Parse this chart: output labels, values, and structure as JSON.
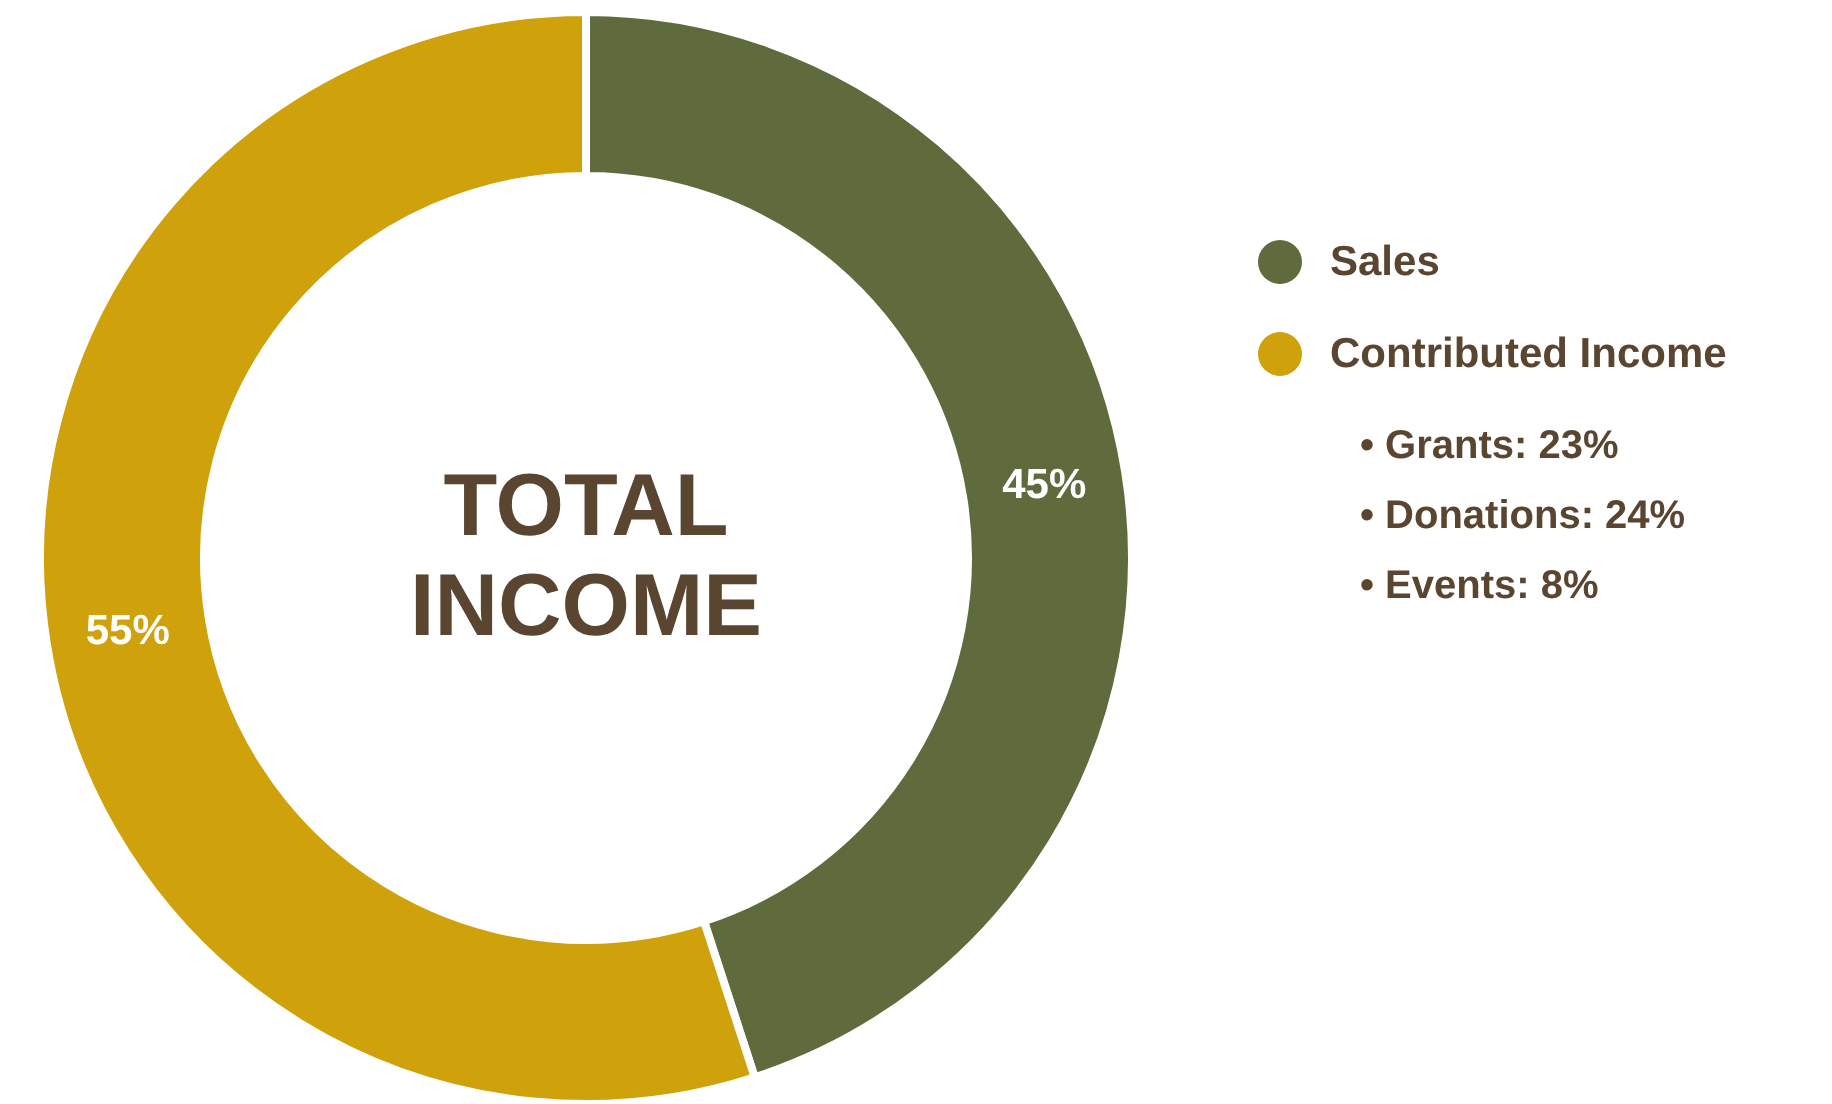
{
  "chart_data": {
    "type": "donut",
    "title": "TOTAL INCOME",
    "categories": [
      "Sales",
      "Contributed Income"
    ],
    "values": [
      45,
      55
    ],
    "colors": [
      "#5f6b3c",
      "#cfa10b"
    ],
    "value_labels": [
      "45%",
      "55%"
    ],
    "legend": "right",
    "annotations": [
      "• Grants: 23%",
      "• Donations: 24%",
      "• Events: 8%"
    ]
  }
}
